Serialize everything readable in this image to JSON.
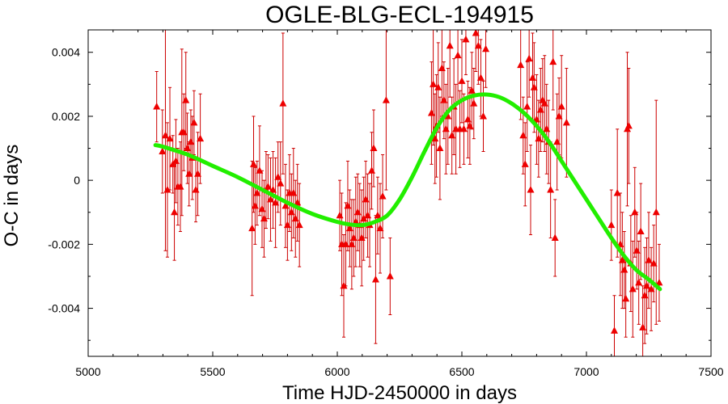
{
  "chart_data": {
    "type": "scatter",
    "title": "OGLE-BLG-ECL-194915",
    "xlabel": "Time HJD-2450000 in days",
    "ylabel": "O-C in days",
    "xlim": [
      5000,
      7500
    ],
    "ylim": [
      -0.0055,
      0.0047
    ],
    "x_ticks": [
      5000,
      5500,
      6000,
      6500,
      7000,
      7500
    ],
    "y_ticks": [
      -0.004,
      -0.002,
      0,
      0.002,
      0.004
    ],
    "x_tick_labels": [
      "5000",
      "5500",
      "6000",
      "6500",
      "7000",
      "7500"
    ],
    "y_tick_labels": [
      "-0.004",
      "-0.002",
      "0",
      "0.002",
      "0.004"
    ],
    "grid": false,
    "legend": "none",
    "colors": {
      "points": "#ee0000",
      "error_bars": "#cc0000",
      "fit": "#22ee00"
    },
    "series": [
      {
        "type": "scatter_with_error_bars",
        "marker": "triangle",
        "points": [
          {
            "x": 5275,
            "y": 0.0023,
            "err": 0.0011
          },
          {
            "x": 5298,
            "y": 0.0009,
            "err": 0.0013
          },
          {
            "x": 5310,
            "y": 0.0014,
            "err": 0.0036
          },
          {
            "x": 5318,
            "y": -0.0003,
            "err": 0.0021
          },
          {
            "x": 5328,
            "y": 0.0013,
            "err": 0.0016
          },
          {
            "x": 5340,
            "y": 0.0005,
            "err": 0.0009
          },
          {
            "x": 5346,
            "y": -0.001,
            "err": 0.0015
          },
          {
            "x": 5352,
            "y": 0.0006,
            "err": 0.0013
          },
          {
            "x": 5360,
            "y": -0.0002,
            "err": 0.0012
          },
          {
            "x": 5370,
            "y": -0.0002,
            "err": 0.0014
          },
          {
            "x": 5376,
            "y": 0.0015,
            "err": 0.0026
          },
          {
            "x": 5384,
            "y": 0.0015,
            "err": 0.0012
          },
          {
            "x": 5392,
            "y": 0.0025,
            "err": 0.0015
          },
          {
            "x": 5398,
            "y": 0.001,
            "err": 0.0011
          },
          {
            "x": 5405,
            "y": 0.0002,
            "err": 0.001
          },
          {
            "x": 5412,
            "y": 0.0012,
            "err": 0.001
          },
          {
            "x": 5418,
            "y": 0.0007,
            "err": 0.0013
          },
          {
            "x": 5425,
            "y": 0.0018,
            "err": 0.001
          },
          {
            "x": 5432,
            "y": -0.0003,
            "err": 0.001
          },
          {
            "x": 5440,
            "y": 0.0002,
            "err": 0.0013
          },
          {
            "x": 5450,
            "y": 0.0013,
            "err": 0.0014
          },
          {
            "x": 5658,
            "y": -0.0015,
            "err": 0.0021
          },
          {
            "x": 5664,
            "y": 0.0005,
            "err": 0.0015
          },
          {
            "x": 5670,
            "y": -0.0008,
            "err": 0.0012
          },
          {
            "x": 5678,
            "y": -0.0004,
            "err": 0.001
          },
          {
            "x": 5688,
            "y": 0.0003,
            "err": 0.0014
          },
          {
            "x": 5698,
            "y": -0.0009,
            "err": 0.0012
          },
          {
            "x": 5706,
            "y": -0.0012,
            "err": 0.0012
          },
          {
            "x": 5714,
            "y": -0.0003,
            "err": 0.0012
          },
          {
            "x": 5722,
            "y": -0.0002,
            "err": 0.001
          },
          {
            "x": 5732,
            "y": -0.0006,
            "err": 0.0013
          },
          {
            "x": 5742,
            "y": -0.0003,
            "err": 0.0012
          },
          {
            "x": 5752,
            "y": -0.0007,
            "err": 0.0014
          },
          {
            "x": 5762,
            "y": 0.0001,
            "err": 0.0011
          },
          {
            "x": 5772,
            "y": -0.0001,
            "err": 0.0013
          },
          {
            "x": 5782,
            "y": 0.0024,
            "err": 0.0022
          },
          {
            "x": 5792,
            "y": -0.0008,
            "err": 0.0013
          },
          {
            "x": 5800,
            "y": -0.0014,
            "err": 0.0011
          },
          {
            "x": 5808,
            "y": -0.0004,
            "err": 0.0012
          },
          {
            "x": 5816,
            "y": -0.001,
            "err": 0.0012
          },
          {
            "x": 5824,
            "y": -0.0004,
            "err": 0.0014
          },
          {
            "x": 5832,
            "y": -0.0012,
            "err": 0.0012
          },
          {
            "x": 5840,
            "y": -0.0007,
            "err": 0.0012
          },
          {
            "x": 5848,
            "y": -0.0014,
            "err": 0.0013
          },
          {
            "x": 6010,
            "y": -0.0011,
            "err": 0.0011
          },
          {
            "x": 6018,
            "y": -0.002,
            "err": 0.0016
          },
          {
            "x": 6026,
            "y": -0.0033,
            "err": 0.0016
          },
          {
            "x": 6034,
            "y": -0.002,
            "err": 0.0013
          },
          {
            "x": 6042,
            "y": -0.0008,
            "err": 0.0014
          },
          {
            "x": 6050,
            "y": -0.0015,
            "err": 0.0012
          },
          {
            "x": 6058,
            "y": -0.002,
            "err": 0.0014
          },
          {
            "x": 6066,
            "y": -0.0018,
            "err": 0.0012
          },
          {
            "x": 6074,
            "y": -0.0013,
            "err": 0.0014
          },
          {
            "x": 6082,
            "y": -0.001,
            "err": 0.0012
          },
          {
            "x": 6090,
            "y": -0.0014,
            "err": 0.0013
          },
          {
            "x": 6098,
            "y": -0.0018,
            "err": 0.0015
          },
          {
            "x": 6106,
            "y": -0.0012,
            "err": 0.0013
          },
          {
            "x": 6114,
            "y": -0.0006,
            "err": 0.0012
          },
          {
            "x": 6122,
            "y": -0.0011,
            "err": 0.0013
          },
          {
            "x": 6130,
            "y": -0.0014,
            "err": 0.0013
          },
          {
            "x": 6138,
            "y": 0.0003,
            "err": 0.0012
          },
          {
            "x": 6146,
            "y": 0.001,
            "err": 0.0012
          },
          {
            "x": 6154,
            "y": -0.0031,
            "err": 0.002
          },
          {
            "x": 6162,
            "y": -0.0011,
            "err": 0.0012
          },
          {
            "x": 6172,
            "y": -0.0015,
            "err": 0.0014
          },
          {
            "x": 6182,
            "y": -0.0005,
            "err": 0.0013
          },
          {
            "x": 6196,
            "y": 0.0025,
            "err": 0.0028
          },
          {
            "x": 6212,
            "y": -0.003,
            "err": 0.0012
          },
          {
            "x": 6378,
            "y": 0.0021,
            "err": 0.0016
          },
          {
            "x": 6385,
            "y": 0.003,
            "err": 0.0019
          },
          {
            "x": 6392,
            "y": 0.0013,
            "err": 0.0014
          },
          {
            "x": 6398,
            "y": 0.0017,
            "err": 0.0016
          },
          {
            "x": 6405,
            "y": 0.0029,
            "err": 0.0014
          },
          {
            "x": 6412,
            "y": 0.001,
            "err": 0.0016
          },
          {
            "x": 6420,
            "y": 0.0035,
            "err": 0.0015
          },
          {
            "x": 6428,
            "y": 0.0025,
            "err": 0.0012
          },
          {
            "x": 6436,
            "y": 0.0016,
            "err": 0.0014
          },
          {
            "x": 6444,
            "y": 0.002,
            "err": 0.0015
          },
          {
            "x": 6452,
            "y": 0.0042,
            "err": 0.0016
          },
          {
            "x": 6460,
            "y": 0.0014,
            "err": 0.0012
          },
          {
            "x": 6468,
            "y": 0.0023,
            "err": 0.0015
          },
          {
            "x": 6476,
            "y": 0.0016,
            "err": 0.0014
          },
          {
            "x": 6484,
            "y": 0.0039,
            "err": 0.0015
          },
          {
            "x": 6492,
            "y": 0.0016,
            "err": 0.0012
          },
          {
            "x": 6500,
            "y": 0.0031,
            "err": 0.0013
          },
          {
            "x": 6508,
            "y": 0.0016,
            "err": 0.0011
          },
          {
            "x": 6516,
            "y": 0.0044,
            "err": 0.0011
          },
          {
            "x": 6524,
            "y": 0.0019,
            "err": 0.0012
          },
          {
            "x": 6532,
            "y": 0.0017,
            "err": 0.0012
          },
          {
            "x": 6540,
            "y": 0.0028,
            "err": 0.0012
          },
          {
            "x": 6548,
            "y": 0.0024,
            "err": 0.0011
          },
          {
            "x": 6556,
            "y": 0.0046,
            "err": 0.0012
          },
          {
            "x": 6566,
            "y": 0.0042,
            "err": 0.0012
          },
          {
            "x": 6576,
            "y": 0.0032,
            "err": 0.0012
          },
          {
            "x": 6586,
            "y": 0.002,
            "err": 0.0011
          },
          {
            "x": 6596,
            "y": 0.0041,
            "err": 0.0012
          },
          {
            "x": 6736,
            "y": 0.0036,
            "err": 0.0017
          },
          {
            "x": 6746,
            "y": 0.0014,
            "err": 0.0012
          },
          {
            "x": 6754,
            "y": 0.0005,
            "err": 0.0013
          },
          {
            "x": 6762,
            "y": 0.0023,
            "err": 0.0014
          },
          {
            "x": 6770,
            "y": 0.0038,
            "err": 0.0012
          },
          {
            "x": 6776,
            "y": -0.0003,
            "err": 0.0014
          },
          {
            "x": 6784,
            "y": 0.0032,
            "err": 0.0014
          },
          {
            "x": 6790,
            "y": 0.0029,
            "err": 0.0014
          },
          {
            "x": 6800,
            "y": 0.0019,
            "err": 0.0014
          },
          {
            "x": 6808,
            "y": 0.0013,
            "err": 0.0012
          },
          {
            "x": 6816,
            "y": 0.0022,
            "err": 0.0013
          },
          {
            "x": 6824,
            "y": 0.0025,
            "err": 0.0013
          },
          {
            "x": 6832,
            "y": 0.0024,
            "err": 0.0015
          },
          {
            "x": 6840,
            "y": 0.0016,
            "err": 0.0014
          },
          {
            "x": 6848,
            "y": 0.0012,
            "err": 0.0013
          },
          {
            "x": 6856,
            "y": -0.0003,
            "err": 0.0015
          },
          {
            "x": 6866,
            "y": 0.0037,
            "err": 0.0015
          },
          {
            "x": 6874,
            "y": -0.0018,
            "err": 0.0012
          },
          {
            "x": 6882,
            "y": 0.0012,
            "err": 0.0015
          },
          {
            "x": 6890,
            "y": 0.002,
            "err": 0.0012
          },
          {
            "x": 6900,
            "y": 0.0023,
            "err": 0.0016
          },
          {
            "x": 6920,
            "y": 0.0018,
            "err": 0.0017
          },
          {
            "x": 7100,
            "y": -0.0014,
            "err": 0.0011
          },
          {
            "x": 7112,
            "y": -0.0047,
            "err": 0.0011
          },
          {
            "x": 7124,
            "y": -0.0004,
            "err": 0.002
          },
          {
            "x": 7136,
            "y": -0.002,
            "err": 0.0016
          },
          {
            "x": 7144,
            "y": -0.0025,
            "err": 0.0015
          },
          {
            "x": 7152,
            "y": -0.0028,
            "err": 0.0012
          },
          {
            "x": 7158,
            "y": -0.0037,
            "err": 0.0012
          },
          {
            "x": 7164,
            "y": 0.0016,
            "err": 0.0024
          },
          {
            "x": 7170,
            "y": 0.0017,
            "err": 0.0018
          },
          {
            "x": 7178,
            "y": -0.0026,
            "err": 0.0015
          },
          {
            "x": 7186,
            "y": -0.0034,
            "err": 0.0015
          },
          {
            "x": 7194,
            "y": -0.001,
            "err": 0.0014
          },
          {
            "x": 7202,
            "y": -0.0022,
            "err": 0.0012
          },
          {
            "x": 7210,
            "y": -0.0032,
            "err": 0.0013
          },
          {
            "x": 7218,
            "y": -0.0016,
            "err": 0.0015
          },
          {
            "x": 7226,
            "y": -0.0046,
            "err": 0.0013
          },
          {
            "x": 7234,
            "y": -0.0036,
            "err": 0.0015
          },
          {
            "x": 7242,
            "y": -0.0033,
            "err": 0.0015
          },
          {
            "x": 7250,
            "y": -0.0025,
            "err": 0.0015
          },
          {
            "x": 7260,
            "y": -0.0034,
            "err": 0.0013
          },
          {
            "x": 7270,
            "y": -0.0026,
            "err": 0.0012
          },
          {
            "x": 7280,
            "y": -0.001,
            "err": 0.0035
          },
          {
            "x": 7292,
            "y": -0.0032,
            "err": 0.0012
          }
        ]
      },
      {
        "type": "line",
        "fit": "smooth curve",
        "x": [
          5270,
          5300,
          5400,
          5500,
          5600,
          5700,
          5800,
          5900,
          6000,
          6050,
          6100,
          6150,
          6200,
          6250,
          6300,
          6350,
          6400,
          6450,
          6500,
          6550,
          6600,
          6650,
          6700,
          6750,
          6800,
          6850,
          6900,
          6950,
          7000,
          7050,
          7100,
          7150,
          7200,
          7250,
          7295
        ],
        "y": [
          0.0011,
          0.00105,
          0.0008,
          0.00045,
          0.0001,
          -0.0003,
          -0.0007,
          -0.00105,
          -0.0013,
          -0.00138,
          -0.0014,
          -0.0013,
          -0.0011,
          -0.0006,
          0.0001,
          0.0009,
          0.00165,
          0.0022,
          0.0025,
          0.00265,
          0.00268,
          0.0026,
          0.0024,
          0.0021,
          0.0017,
          0.0012,
          0.0006,
          0.0,
          -0.0006,
          -0.0012,
          -0.0018,
          -0.00235,
          -0.0028,
          -0.0031,
          -0.0034
        ]
      }
    ]
  }
}
